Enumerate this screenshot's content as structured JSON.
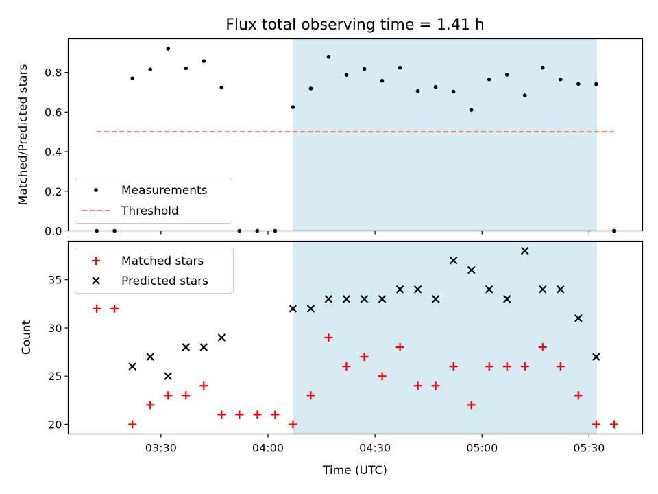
{
  "chart_data": [
    {
      "type": "scatter",
      "title": "Flux total observing time = 1.41 h",
      "xlabel": "",
      "ylabel": "Matched/Predicted stars",
      "xlim": [
        "03:04:00",
        "05:45:00"
      ],
      "ylim": [
        0,
        0.97
      ],
      "yticks": [
        "0.0",
        "0.2",
        "0.4",
        "0.6",
        "0.8"
      ],
      "grid": false,
      "legend_position": "lower-left",
      "shaded_interval": [
        "04:07:00",
        "05:32:00"
      ],
      "shade_color": "#add8e6",
      "series": [
        {
          "name": "Measurements",
          "marker": "dot",
          "color": "#000000",
          "x": [
            "03:12",
            "03:17",
            "03:22",
            "03:27",
            "03:32",
            "03:37",
            "03:42",
            "03:47",
            "03:52",
            "03:57",
            "04:02",
            "04:07",
            "04:12",
            "04:17",
            "04:22",
            "04:27",
            "04:32",
            "04:37",
            "04:42",
            "04:47",
            "04:52",
            "04:57",
            "05:02",
            "05:07",
            "05:12",
            "05:17",
            "05:22",
            "05:27",
            "05:32",
            "05:37"
          ],
          "y": [
            0.0,
            0.0,
            0.77,
            0.815,
            0.92,
            0.821,
            0.857,
            0.724,
            0.0,
            0.0,
            0.0,
            0.625,
            0.719,
            0.879,
            0.788,
            0.818,
            0.758,
            0.824,
            0.706,
            0.727,
            0.703,
            0.611,
            0.765,
            0.788,
            0.684,
            0.824,
            0.765,
            0.742,
            0.741,
            0.0
          ]
        },
        {
          "name": "Threshold",
          "style": "dashed",
          "color": "#ff7070",
          "x": [
            "03:12",
            "05:37"
          ],
          "y": [
            0.5,
            0.5
          ]
        }
      ]
    },
    {
      "type": "scatter",
      "title": "",
      "xlabel": "Time (UTC)",
      "ylabel": "Count",
      "xlim": [
        "03:04:00",
        "05:45:00"
      ],
      "xticks": [
        "03:30",
        "04:00",
        "04:30",
        "05:00",
        "05:30"
      ],
      "ylim": [
        19,
        39
      ],
      "yticks": [
        "20",
        "25",
        "30",
        "35"
      ],
      "grid": false,
      "legend_position": "upper-left",
      "shaded_interval": [
        "04:07:00",
        "05:32:00"
      ],
      "shade_color": "#add8e6",
      "series": [
        {
          "name": "Matched stars",
          "marker": "plus",
          "color": "#ff0000",
          "x": [
            "03:12",
            "03:17",
            "03:22",
            "03:27",
            "03:32",
            "03:37",
            "03:42",
            "03:47",
            "03:52",
            "03:57",
            "04:02",
            "04:07",
            "04:12",
            "04:17",
            "04:22",
            "04:27",
            "04:32",
            "04:37",
            "04:42",
            "04:47",
            "04:52",
            "04:57",
            "05:02",
            "05:07",
            "05:12",
            "05:17",
            "05:22",
            "05:27",
            "05:32",
            "05:37"
          ],
          "y": [
            32,
            32,
            20,
            22,
            23,
            23,
            24,
            21,
            21,
            21,
            21,
            20,
            23,
            29,
            26,
            27,
            25,
            28,
            24,
            24,
            26,
            22,
            26,
            26,
            26,
            28,
            26,
            23,
            20,
            20
          ]
        },
        {
          "name": "Predicted stars",
          "marker": "x",
          "color": "#000000",
          "x": [
            "03:22",
            "03:27",
            "03:32",
            "03:37",
            "03:42",
            "03:47",
            "04:07",
            "04:12",
            "04:17",
            "04:22",
            "04:27",
            "04:32",
            "04:37",
            "04:42",
            "04:47",
            "04:52",
            "04:57",
            "05:02",
            "05:07",
            "05:12",
            "05:17",
            "05:22",
            "05:27",
            "05:32"
          ],
          "y": [
            26,
            27,
            25,
            28,
            28,
            29,
            32,
            32,
            33,
            33,
            33,
            33,
            34,
            34,
            33,
            37,
            36,
            34,
            33,
            38,
            34,
            34,
            31,
            27
          ]
        }
      ]
    }
  ]
}
